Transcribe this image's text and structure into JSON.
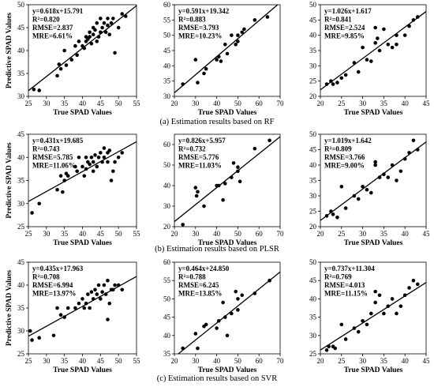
{
  "captions": {
    "a": "(a)  Estimation results based on RF",
    "b": "(b)  Estimation results based on PLSR",
    "c": "(c)  Estimation results based on SVR"
  },
  "chart_data": [
    {
      "id": "rf-1",
      "type": "scatter",
      "xlabel": "True SPAD Values",
      "ylabel": "Predictive SPAD Values",
      "xlim": [
        25,
        55
      ],
      "ylim": [
        30,
        50
      ],
      "xticks": [
        25,
        30,
        35,
        40,
        45,
        50,
        55
      ],
      "yticks": [
        30,
        35,
        40,
        45,
        50
      ],
      "fit": {
        "slope": 0.618,
        "intercept": 15.791
      },
      "annotations": [
        "y=0.618x+15.791",
        "R²=0.820",
        "RMSE=2.837",
        "MRE=6.61%"
      ],
      "x": [
        26.5,
        28,
        33,
        33.5,
        34,
        35,
        35.5,
        37,
        38,
        38.5,
        39,
        40,
        40.5,
        41,
        41,
        41.5,
        42,
        42,
        42.5,
        43,
        43,
        43.5,
        44,
        44,
        44.5,
        45,
        45,
        45.5,
        46,
        46.5,
        47,
        47,
        47.5,
        48,
        48.5,
        49,
        50,
        51,
        52
      ],
      "y": [
        31.5,
        31.3,
        34.5,
        37,
        36,
        40,
        36.8,
        38,
        41,
        39,
        42,
        41,
        40.5,
        43,
        42,
        42.5,
        43,
        44,
        41.5,
        45,
        43.5,
        44.5,
        42,
        46,
        43,
        47,
        44,
        45,
        46,
        44,
        47,
        45.5,
        43.5,
        46,
        47,
        39.5,
        45,
        48,
        47.5
      ]
    },
    {
      "id": "rf-2",
      "type": "scatter",
      "xlabel": "True SPAD Values",
      "ylabel": "",
      "xlim": [
        20,
        70
      ],
      "ylim": [
        30,
        60
      ],
      "xticks": [
        20,
        30,
        40,
        50,
        60,
        70
      ],
      "yticks": [
        30,
        35,
        40,
        45,
        50,
        55,
        60
      ],
      "fit": {
        "slope": 0.591,
        "intercept": 19.342
      },
      "annotations": [
        "y=0.591x+19.342",
        "R²=0.883",
        "RMSE=3.793",
        "MRE=10.23%"
      ],
      "x": [
        24,
        30,
        31,
        34,
        35,
        40,
        41,
        42,
        44,
        45,
        47,
        49,
        50,
        50,
        52,
        53,
        58,
        64
      ],
      "y": [
        34,
        42,
        34.5,
        37.5,
        39,
        42,
        43,
        41.5,
        47,
        44,
        50,
        47,
        50,
        48,
        51,
        52,
        55,
        56
      ]
    },
    {
      "id": "rf-3",
      "type": "scatter",
      "xlabel": "True SPAD Values",
      "ylabel": "",
      "xlim": [
        20,
        45
      ],
      "ylim": [
        20,
        50
      ],
      "xticks": [
        20,
        25,
        30,
        35,
        40,
        45
      ],
      "yticks": [
        20,
        25,
        30,
        35,
        40,
        45,
        50
      ],
      "fit": {
        "slope": 1.026,
        "intercept": 1.617
      },
      "annotations": [
        "y=1.026x+1.617",
        "R²=0.841",
        "RMSE=2.524",
        "MRE=9.85%"
      ],
      "x": [
        21.5,
        22.5,
        23,
        24,
        25,
        26,
        28,
        29,
        30,
        31,
        32,
        33,
        33,
        33.5,
        34,
        35,
        36,
        37,
        38,
        38,
        40,
        41,
        42,
        43
      ],
      "y": [
        24,
        25,
        24,
        24.5,
        26,
        27,
        31,
        28,
        36,
        32,
        31.5,
        42.5,
        37.5,
        39,
        35,
        42,
        37,
        36,
        40,
        37,
        40,
        43,
        45,
        46
      ]
    },
    {
      "id": "plsr-1",
      "type": "scatter",
      "xlabel": "True SPAD Values",
      "ylabel": "Predictive SPAD Values",
      "xlim": [
        25,
        55
      ],
      "ylim": [
        25,
        45
      ],
      "xticks": [
        25,
        30,
        35,
        40,
        45,
        50,
        55
      ],
      "yticks": [
        25,
        30,
        35,
        40,
        45
      ],
      "fit": {
        "slope": 0.431,
        "intercept": 19.685
      },
      "annotations": [
        "y=0.431x+19.685",
        "R²=0.743",
        "RMSE=5.785",
        "MRE=11.06%"
      ],
      "x": [
        26,
        28,
        33,
        34,
        34.5,
        35,
        35.5,
        36,
        38,
        38.5,
        39,
        40,
        40.5,
        41,
        41,
        41.5,
        42,
        42.5,
        43,
        43,
        43.5,
        44,
        44.5,
        45,
        45.5,
        46,
        46,
        47,
        47,
        47.5,
        48,
        48.5,
        49,
        50,
        51
      ],
      "y": [
        28,
        30,
        33,
        36,
        32.5,
        35,
        36.5,
        36,
        38,
        37,
        40,
        38,
        36,
        37.5,
        40,
        39,
        38.5,
        40,
        37,
        39,
        40.5,
        38,
        40,
        41,
        39,
        42,
        40,
        39,
        41,
        41.5,
        35,
        37,
        39,
        40,
        41
      ]
    },
    {
      "id": "plsr-2",
      "type": "scatter",
      "xlabel": "True SPAD Values",
      "ylabel": "",
      "xlim": [
        20,
        70
      ],
      "ylim": [
        20,
        65
      ],
      "xticks": [
        20,
        30,
        40,
        50,
        60,
        70
      ],
      "yticks": [
        20,
        30,
        40,
        50,
        60
      ],
      "fit": {
        "slope": 0.826,
        "intercept": 5.957
      },
      "annotations": [
        "y=0.826x+5.957",
        "R²=0.732",
        "RMSE=5.776",
        "MRE=11.03%"
      ],
      "x": [
        24,
        30,
        30.5,
        31,
        34,
        40,
        41,
        43,
        44,
        47,
        48,
        50,
        50,
        51,
        58,
        65
      ],
      "y": [
        21,
        39,
        35,
        37,
        30,
        40,
        40,
        33,
        41,
        44,
        51,
        47,
        49,
        42,
        58,
        62
      ]
    },
    {
      "id": "plsr-3",
      "type": "scatter",
      "xlabel": "True SPAD Values",
      "ylabel": "",
      "xlim": [
        20,
        45
      ],
      "ylim": [
        20,
        50
      ],
      "xticks": [
        20,
        25,
        30,
        35,
        40,
        45
      ],
      "yticks": [
        20,
        25,
        30,
        35,
        40,
        45,
        50
      ],
      "fit": {
        "slope": 1.019,
        "intercept": 1.642
      },
      "annotations": [
        "y=1.019x+1.642",
        "R²=0.809",
        "RMSE=3.766",
        "MRE=9.00%"
      ],
      "x": [
        21.5,
        22.5,
        23,
        24,
        25,
        26,
        28,
        29,
        30,
        31,
        32,
        33,
        33,
        34,
        35,
        36,
        37,
        38,
        39,
        40,
        41,
        42,
        43
      ],
      "y": [
        23.5,
        25,
        24,
        23,
        33,
        26,
        30,
        29,
        33,
        32,
        31,
        40,
        41,
        36,
        37,
        36,
        40,
        35,
        38,
        42,
        44,
        48,
        45
      ]
    },
    {
      "id": "svr-1",
      "type": "scatter",
      "xlabel": "True SPAD Values",
      "ylabel": "Predictive SPAD Values",
      "xlim": [
        25,
        55
      ],
      "ylim": [
        25,
        45
      ],
      "xticks": [
        25,
        30,
        35,
        40,
        45,
        50,
        55
      ],
      "yticks": [
        25,
        30,
        35,
        40,
        45
      ],
      "fit": {
        "slope": 0.435,
        "intercept": 17.963
      },
      "annotations": [
        "y=0.435x+17.963",
        "R²=0.708",
        "RMSE=6.994",
        "MRE=13.97%"
      ],
      "x": [
        25.5,
        26,
        28,
        32,
        33,
        34,
        35,
        36,
        38,
        39,
        40,
        40.5,
        41,
        41.5,
        42,
        42.5,
        43,
        43.5,
        44,
        44.5,
        45,
        45.5,
        46,
        46.5,
        47,
        47,
        47.5,
        48,
        48.5,
        49,
        50,
        51
      ],
      "y": [
        30,
        28,
        28.5,
        29,
        35,
        33.5,
        33,
        35,
        35,
        36,
        37,
        35,
        36,
        38,
        35,
        38.5,
        37,
        39,
        38,
        40,
        37,
        38.5,
        40,
        38,
        41,
        32.5,
        36,
        39,
        39,
        40,
        40,
        39
      ]
    },
    {
      "id": "svr-2",
      "type": "scatter",
      "xlabel": "True SPAD Values",
      "ylabel": "",
      "xlim": [
        20,
        70
      ],
      "ylim": [
        35,
        60
      ],
      "xticks": [
        20,
        30,
        40,
        50,
        60,
        70
      ],
      "yticks": [
        35,
        40,
        45,
        50,
        55,
        60
      ],
      "fit": {
        "slope": 0.464,
        "intercept": 24.85
      },
      "annotations": [
        "y=0.464x+24.850",
        "R²=0.788",
        "RMSE=6.245",
        "MRE=13.85%"
      ],
      "x": [
        24,
        30,
        31,
        34,
        35,
        40,
        41,
        43,
        44,
        45,
        47,
        49,
        50,
        50,
        52,
        58,
        65
      ],
      "y": [
        36.5,
        40.5,
        36.5,
        42.5,
        43,
        42,
        44,
        49,
        45,
        40,
        46,
        52,
        47,
        50,
        51,
        51.5,
        55
      ]
    },
    {
      "id": "svr-3",
      "type": "scatter",
      "xlabel": "True SPAD Values",
      "ylabel": "",
      "xlim": [
        20,
        45
      ],
      "ylim": [
        25,
        50
      ],
      "xticks": [
        20,
        25,
        30,
        35,
        40,
        45
      ],
      "yticks": [
        25,
        30,
        35,
        40,
        45,
        50
      ],
      "fit": {
        "slope": 0.737,
        "intercept": 11.304
      },
      "annotations": [
        "y=0.737x+11.304",
        "R²=0.769",
        "RMSE=4.013",
        "MRE=11.15%"
      ],
      "x": [
        21.5,
        22,
        23,
        23.5,
        25,
        26,
        28,
        29,
        30,
        31,
        32,
        33,
        33,
        34,
        35,
        36,
        37,
        38,
        39,
        40,
        41,
        42,
        43
      ],
      "y": [
        26,
        27,
        27,
        26.5,
        33,
        29,
        32,
        31,
        34,
        33,
        36,
        42,
        39,
        41,
        36,
        38,
        40,
        36,
        38,
        41,
        43,
        45,
        44
      ]
    }
  ]
}
